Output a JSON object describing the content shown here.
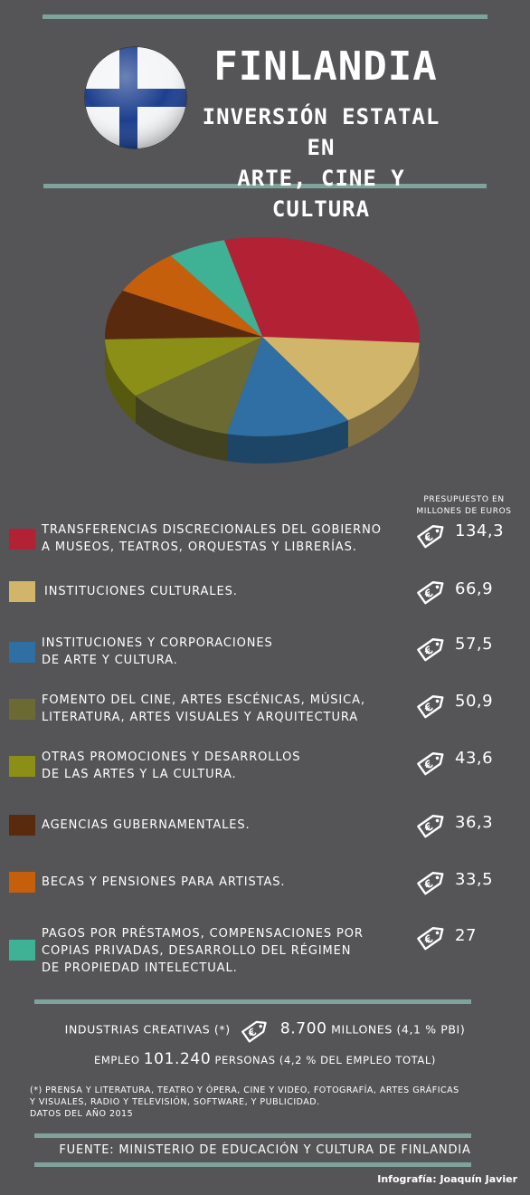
{
  "header": {
    "title": "FINLANDIA",
    "subtitle_line1": "INVERSIÓN ESTATAL EN",
    "subtitle_line2": "ARTE, CINE Y CULTURA"
  },
  "colors": {
    "background": "#555557",
    "rule": "#7fa39b",
    "flag_blue": "#1d3f8f"
  },
  "icons": {
    "flag": "finland-flag-icon",
    "tag": "euro-price-tag-icon"
  },
  "budget_header": "PRESUPUESTO EN MILLONES DE EUROS",
  "chart_data": {
    "type": "pie",
    "title": "",
    "categories": [
      "TRANSFERENCIAS DISCRECIONALES DEL GOBIERNO A MUSEOS, TEATROS, ORQUESTAS Y LIBRERÍAS.",
      "INSTITUCIONES CULTURALES.",
      "INSTITUCIONES Y CORPORACIONES DE ARTE Y CULTURA.",
      "FOMENTO DEL CINE, ARTES ESCÉNICAS, MÚSICA, LITERATURA, ARTES VISUALES Y ARQUITECTURA",
      "OTRAS PROMOCIONES Y DESARROLLOS DE LAS ARTES Y LA CULTURA.",
      "AGENCIAS GUBERNAMENTALES.",
      "BECAS Y PENSIONES PARA ARTISTAS.",
      "PAGOS POR PRÉSTAMOS, COMPENSACIONES POR COPIAS PRIVADAS, DESARROLLO DEL RÉGIMEN DE PROPIEDAD INTELECTUAL."
    ],
    "values": [
      134.3,
      66.9,
      57.5,
      50.9,
      43.6,
      36.3,
      33.5,
      27
    ],
    "value_labels": [
      "134,3",
      "66,9",
      "57,5",
      "50,9",
      "43,6",
      "36,3",
      "33,5",
      "27"
    ],
    "colors": [
      "#b22234",
      "#d1b56a",
      "#2f6fa3",
      "#6b6a33",
      "#8c8f17",
      "#5a2a0f",
      "#c65f0c",
      "#3fb296"
    ],
    "label_lines": [
      [
        "TRANSFERENCIAS DISCRECIONALES DEL GOBIERNO",
        "A MUSEOS, TEATROS, ORQUESTAS Y LIBRERÍAS."
      ],
      [
        "INSTITUCIONES CULTURALES."
      ],
      [
        "INSTITUCIONES Y CORPORACIONES",
        "DE ARTE Y CULTURA."
      ],
      [
        "FOMENTO DEL CINE, ARTES ESCÉNICAS, MÚSICA,",
        "LITERATURA, ARTES VISUALES Y ARQUITECTURA"
      ],
      [
        "OTRAS PROMOCIONES Y DESARROLLOS",
        "DE LAS ARTES Y LA CULTURA."
      ],
      [
        "AGENCIAS GUBERNAMENTALES."
      ],
      [
        "BECAS Y PENSIONES PARA ARTISTAS."
      ],
      [
        "PAGOS POR PRÉSTAMOS, COMPENSACIONES POR",
        "COPIAS PRIVADAS, DESARROLLO DEL RÉGIMEN",
        "DE PROPIEDAD INTELECTUAL."
      ]
    ]
  },
  "summary": {
    "creative_label": "INDUSTRIAS CREATIVAS (*)",
    "creative_value": "8.700",
    "creative_unit": "MILLONES (4,1 % PBI)",
    "employment_label": "EMPLEO",
    "employment_value": "101.240",
    "employment_unit": "PERSONAS (4,2 % DEL EMPLEO TOTAL)"
  },
  "footnote": {
    "line1": "(*) PRENSA Y LITERATURA, TEATRO Y ÓPERA, CINE Y VIDEO, FOTOGRAFÍA, ARTES GRÁFICAS",
    "line2": "Y VISUALES, RADIO Y TELEVISIÓN, SOFTWARE, Y PUBLICIDAD.",
    "line3": "DATOS DEL AÑO 2015"
  },
  "source": "FUENTE: MINISTERIO DE EDUCACIÓN Y CULTURA DE FINLANDIA",
  "credit": "Infografía: Joaquín Javier"
}
